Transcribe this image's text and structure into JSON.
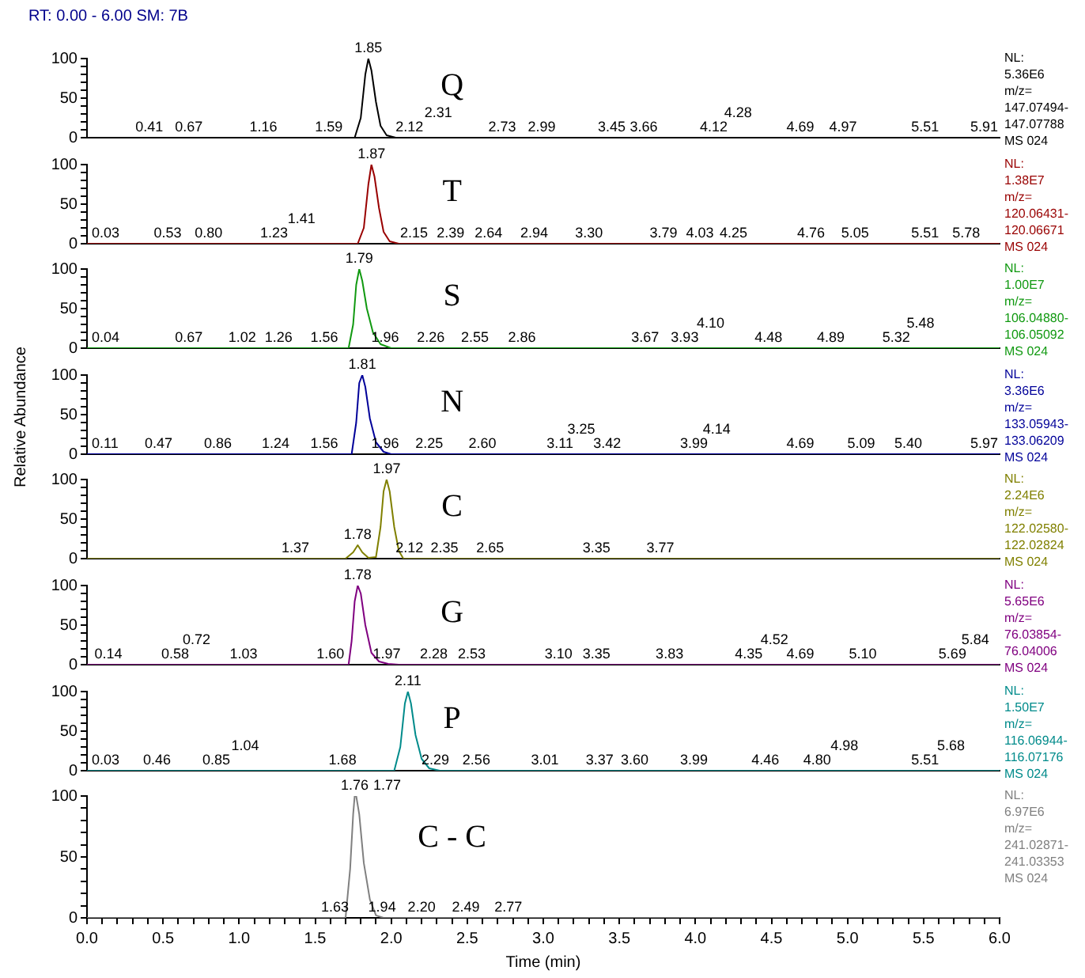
{
  "chart_data": [
    {
      "type": "line",
      "title": "Q",
      "subtitle": "RT: 0.00 - 6.00 SM: 7B",
      "color": "#000000",
      "xlim": [
        0,
        6
      ],
      "ylim": [
        0,
        100
      ],
      "tick_labels": "y",
      "yticks": [
        0,
        {
          "value": 10,
          "label": null
        },
        {
          "value": 20,
          "label": null
        },
        {
          "value": 30,
          "label": null
        },
        {
          "value": 40,
          "label": null
        },
        50,
        {
          "value": 60,
          "label": null
        },
        {
          "value": 70,
          "label": null
        },
        {
          "value": 80,
          "label": null
        },
        {
          "value": 90,
          "label": null
        },
        100
      ],
      "x": [
        0,
        1.76,
        1.8,
        1.83,
        1.85,
        1.87,
        1.9,
        1.93,
        1.97,
        2.03,
        6
      ],
      "values": [
        0,
        0,
        25,
        80,
        100,
        85,
        45,
        15,
        3,
        0,
        0
      ],
      "annotations": [
        "NL:",
        "5.36E6",
        "m/z=",
        "147.07494-",
        "147.07788",
        "MS 024",
        {
          "text": "1.85",
          "x": 1.85,
          "y": 100
        },
        {
          "text": "0.41",
          "x": 0.41,
          "y": 0
        },
        {
          "text": "0.67",
          "x": 0.67,
          "y": 0
        },
        {
          "text": "1.16",
          "x": 1.16,
          "y": 0
        },
        {
          "text": "1.59",
          "x": 1.59,
          "y": 0
        },
        {
          "text": "2.12",
          "x": 2.12,
          "y": 0
        },
        {
          "text": "2.31",
          "x": 2.31,
          "y": 0
        },
        {
          "text": "2.73",
          "x": 2.73,
          "y": 0
        },
        {
          "text": "2.99",
          "x": 2.99,
          "y": 0
        },
        {
          "text": "3.45",
          "x": 3.45,
          "y": 0
        },
        {
          "text": "3.66",
          "x": 3.66,
          "y": 0
        },
        {
          "text": "4.12",
          "x": 4.12,
          "y": 0
        },
        {
          "text": "4.28",
          "x": 4.28,
          "y": 0
        },
        {
          "text": "4.69",
          "x": 4.69,
          "y": 0
        },
        {
          "text": "4.97",
          "x": 4.97,
          "y": 0
        },
        {
          "text": "5.51",
          "x": 5.51,
          "y": 0
        },
        {
          "text": "5.91",
          "x": 5.91,
          "y": 0
        }
      ]
    },
    {
      "type": "line",
      "title": "T",
      "color": "#990000",
      "xlim": [
        0,
        6
      ],
      "ylim": [
        0,
        100
      ],
      "tick_labels": "y",
      "yticks": [
        0,
        {
          "value": 10,
          "label": null
        },
        {
          "value": 20,
          "label": null
        },
        {
          "value": 30,
          "label": null
        },
        {
          "value": 40,
          "label": null
        },
        50,
        {
          "value": 60,
          "label": null
        },
        {
          "value": 70,
          "label": null
        },
        {
          "value": 80,
          "label": null
        },
        {
          "value": 90,
          "label": null
        },
        100
      ],
      "x": [
        0,
        1.78,
        1.82,
        1.85,
        1.87,
        1.89,
        1.92,
        1.95,
        1.99,
        2.05,
        6
      ],
      "values": [
        0,
        0,
        20,
        75,
        100,
        85,
        45,
        15,
        3,
        0,
        0
      ],
      "annotations": [
        "NL:",
        "1.38E7",
        "m/z=",
        "120.06431-",
        "120.06671",
        "MS 024",
        {
          "text": "1.87",
          "x": 1.87,
          "y": 100
        },
        {
          "text": "0.03",
          "x": 0.03,
          "y": 0
        },
        {
          "text": "0.53",
          "x": 0.53,
          "y": 0
        },
        {
          "text": "0.80",
          "x": 0.8,
          "y": 0
        },
        {
          "text": "1.23",
          "x": 1.23,
          "y": 0
        },
        {
          "text": "1.41",
          "x": 1.41,
          "y": 0
        },
        {
          "text": "2.15",
          "x": 2.15,
          "y": 0
        },
        {
          "text": "2.39",
          "x": 2.39,
          "y": 0
        },
        {
          "text": "2.64",
          "x": 2.64,
          "y": 0
        },
        {
          "text": "2.94",
          "x": 2.94,
          "y": 0
        },
        {
          "text": "3.30",
          "x": 3.3,
          "y": 0
        },
        {
          "text": "3.79",
          "x": 3.79,
          "y": 0
        },
        {
          "text": "4.03",
          "x": 4.03,
          "y": 0
        },
        {
          "text": "4.25",
          "x": 4.25,
          "y": 0
        },
        {
          "text": "4.76",
          "x": 4.76,
          "y": 0
        },
        {
          "text": "5.05",
          "x": 5.05,
          "y": 0
        },
        {
          "text": "5.51",
          "x": 5.51,
          "y": 0
        },
        {
          "text": "5.78",
          "x": 5.78,
          "y": 0
        }
      ]
    },
    {
      "type": "line",
      "title": "S",
      "color": "#119911",
      "xlim": [
        0,
        6
      ],
      "ylim": [
        0,
        100
      ],
      "tick_labels": "y",
      "yticks": [
        0,
        {
          "value": 10,
          "label": null
        },
        {
          "value": 20,
          "label": null
        },
        {
          "value": 30,
          "label": null
        },
        {
          "value": 40,
          "label": null
        },
        50,
        {
          "value": 60,
          "label": null
        },
        {
          "value": 70,
          "label": null
        },
        {
          "value": 80,
          "label": null
        },
        {
          "value": 90,
          "label": null
        },
        100
      ],
      "x": [
        0,
        1.72,
        1.75,
        1.77,
        1.79,
        1.81,
        1.84,
        1.88,
        1.93,
        2.0,
        6
      ],
      "values": [
        0,
        0,
        30,
        80,
        100,
        85,
        50,
        20,
        5,
        0,
        0
      ],
      "annotations": [
        "NL:",
        "1.00E7",
        "m/z=",
        "106.04880-",
        "106.05092",
        "MS 024",
        {
          "text": "1.79",
          "x": 1.79,
          "y": 100
        },
        {
          "text": "0.04",
          "x": 0.04,
          "y": 0
        },
        {
          "text": "0.67",
          "x": 0.67,
          "y": 0
        },
        {
          "text": "1.02",
          "x": 1.02,
          "y": 0
        },
        {
          "text": "1.26",
          "x": 1.26,
          "y": 0
        },
        {
          "text": "1.56",
          "x": 1.56,
          "y": 0
        },
        {
          "text": "1.96",
          "x": 1.96,
          "y": 0
        },
        {
          "text": "2.26",
          "x": 2.26,
          "y": 0
        },
        {
          "text": "2.55",
          "x": 2.55,
          "y": 0
        },
        {
          "text": "2.86",
          "x": 2.86,
          "y": 0
        },
        {
          "text": "3.67",
          "x": 3.67,
          "y": 0
        },
        {
          "text": "3.93",
          "x": 3.93,
          "y": 0
        },
        {
          "text": "4.10",
          "x": 4.1,
          "y": 0
        },
        {
          "text": "4.48",
          "x": 4.48,
          "y": 0
        },
        {
          "text": "4.89",
          "x": 4.89,
          "y": 0
        },
        {
          "text": "5.32",
          "x": 5.32,
          "y": 0
        },
        {
          "text": "5.48",
          "x": 5.48,
          "y": 0
        }
      ]
    },
    {
      "type": "line",
      "title": "N",
      "ylabel": "Relative Abundance",
      "color": "#000099",
      "xlim": [
        0,
        6
      ],
      "ylim": [
        0,
        100
      ],
      "tick_labels": "y",
      "yticks": [
        0,
        {
          "value": 10,
          "label": null
        },
        {
          "value": 20,
          "label": null
        },
        {
          "value": 30,
          "label": null
        },
        {
          "value": 40,
          "label": null
        },
        50,
        {
          "value": 60,
          "label": null
        },
        {
          "value": 70,
          "label": null
        },
        {
          "value": 80,
          "label": null
        },
        {
          "value": 90,
          "label": null
        },
        100
      ],
      "x": [
        0,
        1.74,
        1.77,
        1.79,
        1.81,
        1.83,
        1.86,
        1.9,
        1.95,
        2.0,
        6
      ],
      "values": [
        0,
        0,
        40,
        90,
        100,
        85,
        45,
        15,
        3,
        0,
        0
      ],
      "annotations": [
        "NL:",
        "3.36E6",
        "m/z=",
        "133.05943-",
        "133.06209",
        "MS 024",
        {
          "text": "1.81",
          "x": 1.81,
          "y": 100
        },
        {
          "text": "0.11",
          "x": 0.11,
          "y": 0
        },
        {
          "text": "0.47",
          "x": 0.47,
          "y": 0
        },
        {
          "text": "0.86",
          "x": 0.86,
          "y": 0
        },
        {
          "text": "1.24",
          "x": 1.24,
          "y": 0
        },
        {
          "text": "1.56",
          "x": 1.56,
          "y": 0
        },
        {
          "text": "1.96",
          "x": 1.96,
          "y": 0
        },
        {
          "text": "2.25",
          "x": 2.25,
          "y": 0
        },
        {
          "text": "2.60",
          "x": 2.6,
          "y": 0
        },
        {
          "text": "3.11",
          "x": 3.11,
          "y": 0
        },
        {
          "text": "3.25",
          "x": 3.25,
          "y": 0
        },
        {
          "text": "3.42",
          "x": 3.42,
          "y": 0
        },
        {
          "text": "3.99",
          "x": 3.99,
          "y": 0
        },
        {
          "text": "4.14",
          "x": 4.14,
          "y": 0
        },
        {
          "text": "4.69",
          "x": 4.69,
          "y": 0
        },
        {
          "text": "5.09",
          "x": 5.09,
          "y": 0
        },
        {
          "text": "5.40",
          "x": 5.4,
          "y": 0
        },
        {
          "text": "5.97",
          "x": 5.97,
          "y": 0
        }
      ]
    },
    {
      "type": "line",
      "title": "C",
      "color": "#808000",
      "xlim": [
        0,
        6
      ],
      "ylim": [
        0,
        100
      ],
      "tick_labels": "y",
      "yticks": [
        0,
        {
          "value": 10,
          "label": null
        },
        {
          "value": 20,
          "label": null
        },
        {
          "value": 30,
          "label": null
        },
        {
          "value": 40,
          "label": null
        },
        50,
        {
          "value": 60,
          "label": null
        },
        {
          "value": 70,
          "label": null
        },
        {
          "value": 80,
          "label": null
        },
        {
          "value": 90,
          "label": null
        },
        100
      ],
      "x": [
        0,
        1.7,
        1.75,
        1.78,
        1.81,
        1.85,
        1.9,
        1.93,
        1.95,
        1.97,
        1.99,
        2.02,
        2.05,
        2.08,
        6
      ],
      "values": [
        0,
        0,
        8,
        17,
        8,
        1,
        2,
        40,
        85,
        100,
        85,
        40,
        10,
        0,
        0
      ],
      "annotations": [
        "NL:",
        "2.24E6",
        "m/z=",
        "122.02580-",
        "122.02824",
        "MS 024",
        {
          "text": "1.97",
          "x": 1.97,
          "y": 100
        },
        {
          "text": "1.78",
          "x": 1.78,
          "y": 17
        },
        {
          "text": "1.37",
          "x": 1.37,
          "y": 0
        },
        {
          "text": "2.12",
          "x": 2.12,
          "y": 0
        },
        {
          "text": "2.35",
          "x": 2.35,
          "y": 0
        },
        {
          "text": "2.65",
          "x": 2.65,
          "y": 0
        },
        {
          "text": "3.35",
          "x": 3.35,
          "y": 0
        },
        {
          "text": "3.77",
          "x": 3.77,
          "y": 0
        }
      ]
    },
    {
      "type": "line",
      "title": "G",
      "color": "#800080",
      "xlim": [
        0,
        6
      ],
      "ylim": [
        0,
        100
      ],
      "tick_labels": "y",
      "yticks": [
        0,
        {
          "value": 10,
          "label": null
        },
        {
          "value": 20,
          "label": null
        },
        {
          "value": 30,
          "label": null
        },
        {
          "value": 40,
          "label": null
        },
        50,
        {
          "value": 60,
          "label": null
        },
        {
          "value": 70,
          "label": null
        },
        {
          "value": 80,
          "label": null
        },
        {
          "value": 90,
          "label": null
        },
        100
      ],
      "x": [
        0,
        1.72,
        1.74,
        1.76,
        1.78,
        1.8,
        1.83,
        1.87,
        1.92,
        1.98,
        2.05,
        6
      ],
      "values": [
        0,
        0,
        30,
        80,
        100,
        90,
        50,
        15,
        4,
        1,
        0,
        0
      ],
      "annotations": [
        "NL:",
        "5.65E6",
        "m/z=",
        "76.03854-",
        "76.04006",
        "MS 024",
        {
          "text": "1.78",
          "x": 1.78,
          "y": 100
        },
        {
          "text": "0.14",
          "x": 0.14,
          "y": 0
        },
        {
          "text": "0.58",
          "x": 0.58,
          "y": 0
        },
        {
          "text": "0.72",
          "x": 0.72,
          "y": 0
        },
        {
          "text": "1.03",
          "x": 1.03,
          "y": 0
        },
        {
          "text": "1.60",
          "x": 1.6,
          "y": 0
        },
        {
          "text": "1.97",
          "x": 1.97,
          "y": 0
        },
        {
          "text": "2.28",
          "x": 2.28,
          "y": 0
        },
        {
          "text": "2.53",
          "x": 2.53,
          "y": 0
        },
        {
          "text": "3.10",
          "x": 3.1,
          "y": 0
        },
        {
          "text": "3.35",
          "x": 3.35,
          "y": 0
        },
        {
          "text": "3.83",
          "x": 3.83,
          "y": 0
        },
        {
          "text": "4.35",
          "x": 4.35,
          "y": 0
        },
        {
          "text": "4.52",
          "x": 4.52,
          "y": 0
        },
        {
          "text": "4.69",
          "x": 4.69,
          "y": 0
        },
        {
          "text": "5.10",
          "x": 5.1,
          "y": 0
        },
        {
          "text": "5.69",
          "x": 5.69,
          "y": 0
        },
        {
          "text": "5.84",
          "x": 5.84,
          "y": 0
        }
      ]
    },
    {
      "type": "line",
      "title": "P",
      "color": "#008b8b",
      "xlim": [
        0,
        6
      ],
      "ylim": [
        0,
        100
      ],
      "tick_labels": "y",
      "yticks": [
        0,
        {
          "value": 10,
          "label": null
        },
        {
          "value": 20,
          "label": null
        },
        {
          "value": 30,
          "label": null
        },
        {
          "value": 40,
          "label": null
        },
        50,
        {
          "value": 60,
          "label": null
        },
        {
          "value": 70,
          "label": null
        },
        {
          "value": 80,
          "label": null
        },
        {
          "value": 90,
          "label": null
        },
        100
      ],
      "x": [
        0,
        2.02,
        2.06,
        2.09,
        2.11,
        2.13,
        2.16,
        2.2,
        2.25,
        2.32,
        6
      ],
      "values": [
        0,
        0,
        30,
        85,
        100,
        85,
        45,
        15,
        3,
        0,
        0
      ],
      "annotations": [
        "NL:",
        "1.50E7",
        "m/z=",
        "116.06944-",
        "116.07176",
        "MS 024",
        {
          "text": "2.11",
          "x": 2.11,
          "y": 100
        },
        {
          "text": "0.03",
          "x": 0.03,
          "y": 0
        },
        {
          "text": "0.46",
          "x": 0.46,
          "y": 0
        },
        {
          "text": "0.85",
          "x": 0.85,
          "y": 0
        },
        {
          "text": "1.04",
          "x": 1.04,
          "y": 0
        },
        {
          "text": "1.68",
          "x": 1.68,
          "y": 0
        },
        {
          "text": "2.29",
          "x": 2.29,
          "y": 0
        },
        {
          "text": "2.56",
          "x": 2.56,
          "y": 0
        },
        {
          "text": "3.01",
          "x": 3.01,
          "y": 0
        },
        {
          "text": "3.37",
          "x": 3.37,
          "y": 0
        },
        {
          "text": "3.60",
          "x": 3.6,
          "y": 0
        },
        {
          "text": "3.99",
          "x": 3.99,
          "y": 0
        },
        {
          "text": "4.46",
          "x": 4.46,
          "y": 0
        },
        {
          "text": "4.80",
          "x": 4.8,
          "y": 0
        },
        {
          "text": "4.98",
          "x": 4.98,
          "y": 0
        },
        {
          "text": "5.51",
          "x": 5.51,
          "y": 0
        },
        {
          "text": "5.68",
          "x": 5.68,
          "y": 0
        }
      ]
    },
    {
      "type": "line",
      "title": "C - C",
      "xlabel": "Time (min)",
      "color": "#808080",
      "xlim": [
        0,
        6
      ],
      "ylim": [
        0,
        100
      ],
      "xticks": [
        {
          "value": 0,
          "label": "0.0"
        },
        {
          "value": 0.1,
          "label": null
        },
        {
          "value": 0.2,
          "label": null
        },
        {
          "value": 0.3,
          "label": null
        },
        {
          "value": 0.4,
          "label": null
        },
        {
          "value": 0.5,
          "label": "0.5"
        },
        {
          "value": 0.6,
          "label": null
        },
        {
          "value": 0.7,
          "label": null
        },
        {
          "value": 0.8,
          "label": null
        },
        {
          "value": 0.9,
          "label": null
        },
        {
          "value": 1,
          "label": "1.0"
        },
        {
          "value": 1.1,
          "label": null
        },
        {
          "value": 1.2,
          "label": null
        },
        {
          "value": 1.3,
          "label": null
        },
        {
          "value": 1.4,
          "label": null
        },
        {
          "value": 1.5,
          "label": "1.5"
        },
        {
          "value": 1.6,
          "label": null
        },
        {
          "value": 1.7,
          "label": null
        },
        {
          "value": 1.8,
          "label": null
        },
        {
          "value": 1.9,
          "label": null
        },
        {
          "value": 2,
          "label": "2.0"
        },
        {
          "value": 2.1,
          "label": null
        },
        {
          "value": 2.2,
          "label": null
        },
        {
          "value": 2.3,
          "label": null
        },
        {
          "value": 2.4,
          "label": null
        },
        {
          "value": 2.5,
          "label": "2.5"
        },
        {
          "value": 2.6,
          "label": null
        },
        {
          "value": 2.7,
          "label": null
        },
        {
          "value": 2.8,
          "label": null
        },
        {
          "value": 2.9,
          "label": null
        },
        {
          "value": 3,
          "label": "3.0"
        },
        {
          "value": 3.1,
          "label": null
        },
        {
          "value": 3.2,
          "label": null
        },
        {
          "value": 3.3,
          "label": null
        },
        {
          "value": 3.4,
          "label": null
        },
        {
          "value": 3.5,
          "label": "3.5"
        },
        {
          "value": 3.6,
          "label": null
        },
        {
          "value": 3.7,
          "label": null
        },
        {
          "value": 3.8,
          "label": null
        },
        {
          "value": 3.9,
          "label": null
        },
        {
          "value": 4,
          "label": "4.0"
        },
        {
          "value": 4.1,
          "label": null
        },
        {
          "value": 4.2,
          "label": null
        },
        {
          "value": 4.3,
          "label": null
        },
        {
          "value": 4.4,
          "label": null
        },
        {
          "value": 4.5,
          "label": "4.5"
        },
        {
          "value": 4.6,
          "label": null
        },
        {
          "value": 4.7,
          "label": null
        },
        {
          "value": 4.8,
          "label": null
        },
        {
          "value": 4.9,
          "label": null
        },
        {
          "value": 5,
          "label": "5.0"
        },
        {
          "value": 5.1,
          "label": null
        },
        {
          "value": 5.2,
          "label": null
        },
        {
          "value": 5.3,
          "label": null
        },
        {
          "value": 5.4,
          "label": null
        },
        {
          "value": 5.5,
          "label": "5.5"
        },
        {
          "value": 5.6,
          "label": null
        },
        {
          "value": 5.7,
          "label": null
        },
        {
          "value": 5.8,
          "label": null
        },
        {
          "value": 5.9,
          "label": null
        },
        {
          "value": 6,
          "label": "6.0"
        }
      ],
      "yticks": [
        0,
        {
          "value": 10,
          "label": null
        },
        {
          "value": 20,
          "label": null
        },
        {
          "value": 30,
          "label": null
        },
        {
          "value": 40,
          "label": null
        },
        50,
        {
          "value": 60,
          "label": null
        },
        {
          "value": 70,
          "label": null
        },
        {
          "value": 80,
          "label": null
        },
        {
          "value": 90,
          "label": null
        },
        100
      ],
      "x": [
        0,
        1.7,
        1.73,
        1.75,
        1.76,
        1.77,
        1.79,
        1.82,
        1.86,
        1.9,
        1.95,
        6
      ],
      "values": [
        0,
        0,
        40,
        85,
        100,
        100,
        85,
        45,
        15,
        2,
        0,
        0
      ],
      "annotations": [
        "NL:",
        "6.97E6",
        "m/z=",
        "241.02871-",
        "241.03353",
        "MS 024",
        {
          "text": "1.77",
          "x": 1.77,
          "y": 100
        },
        {
          "text": "1.76",
          "x": 1.76,
          "y": 100
        },
        {
          "text": "1.63",
          "x": 1.63,
          "y": 0
        },
        {
          "text": "1.94",
          "x": 1.94,
          "y": 0
        },
        {
          "text": "2.20",
          "x": 2.2,
          "y": 0
        },
        {
          "text": "2.49",
          "x": 2.49,
          "y": 0
        },
        {
          "text": "2.77",
          "x": 2.77,
          "y": 0
        }
      ]
    }
  ]
}
